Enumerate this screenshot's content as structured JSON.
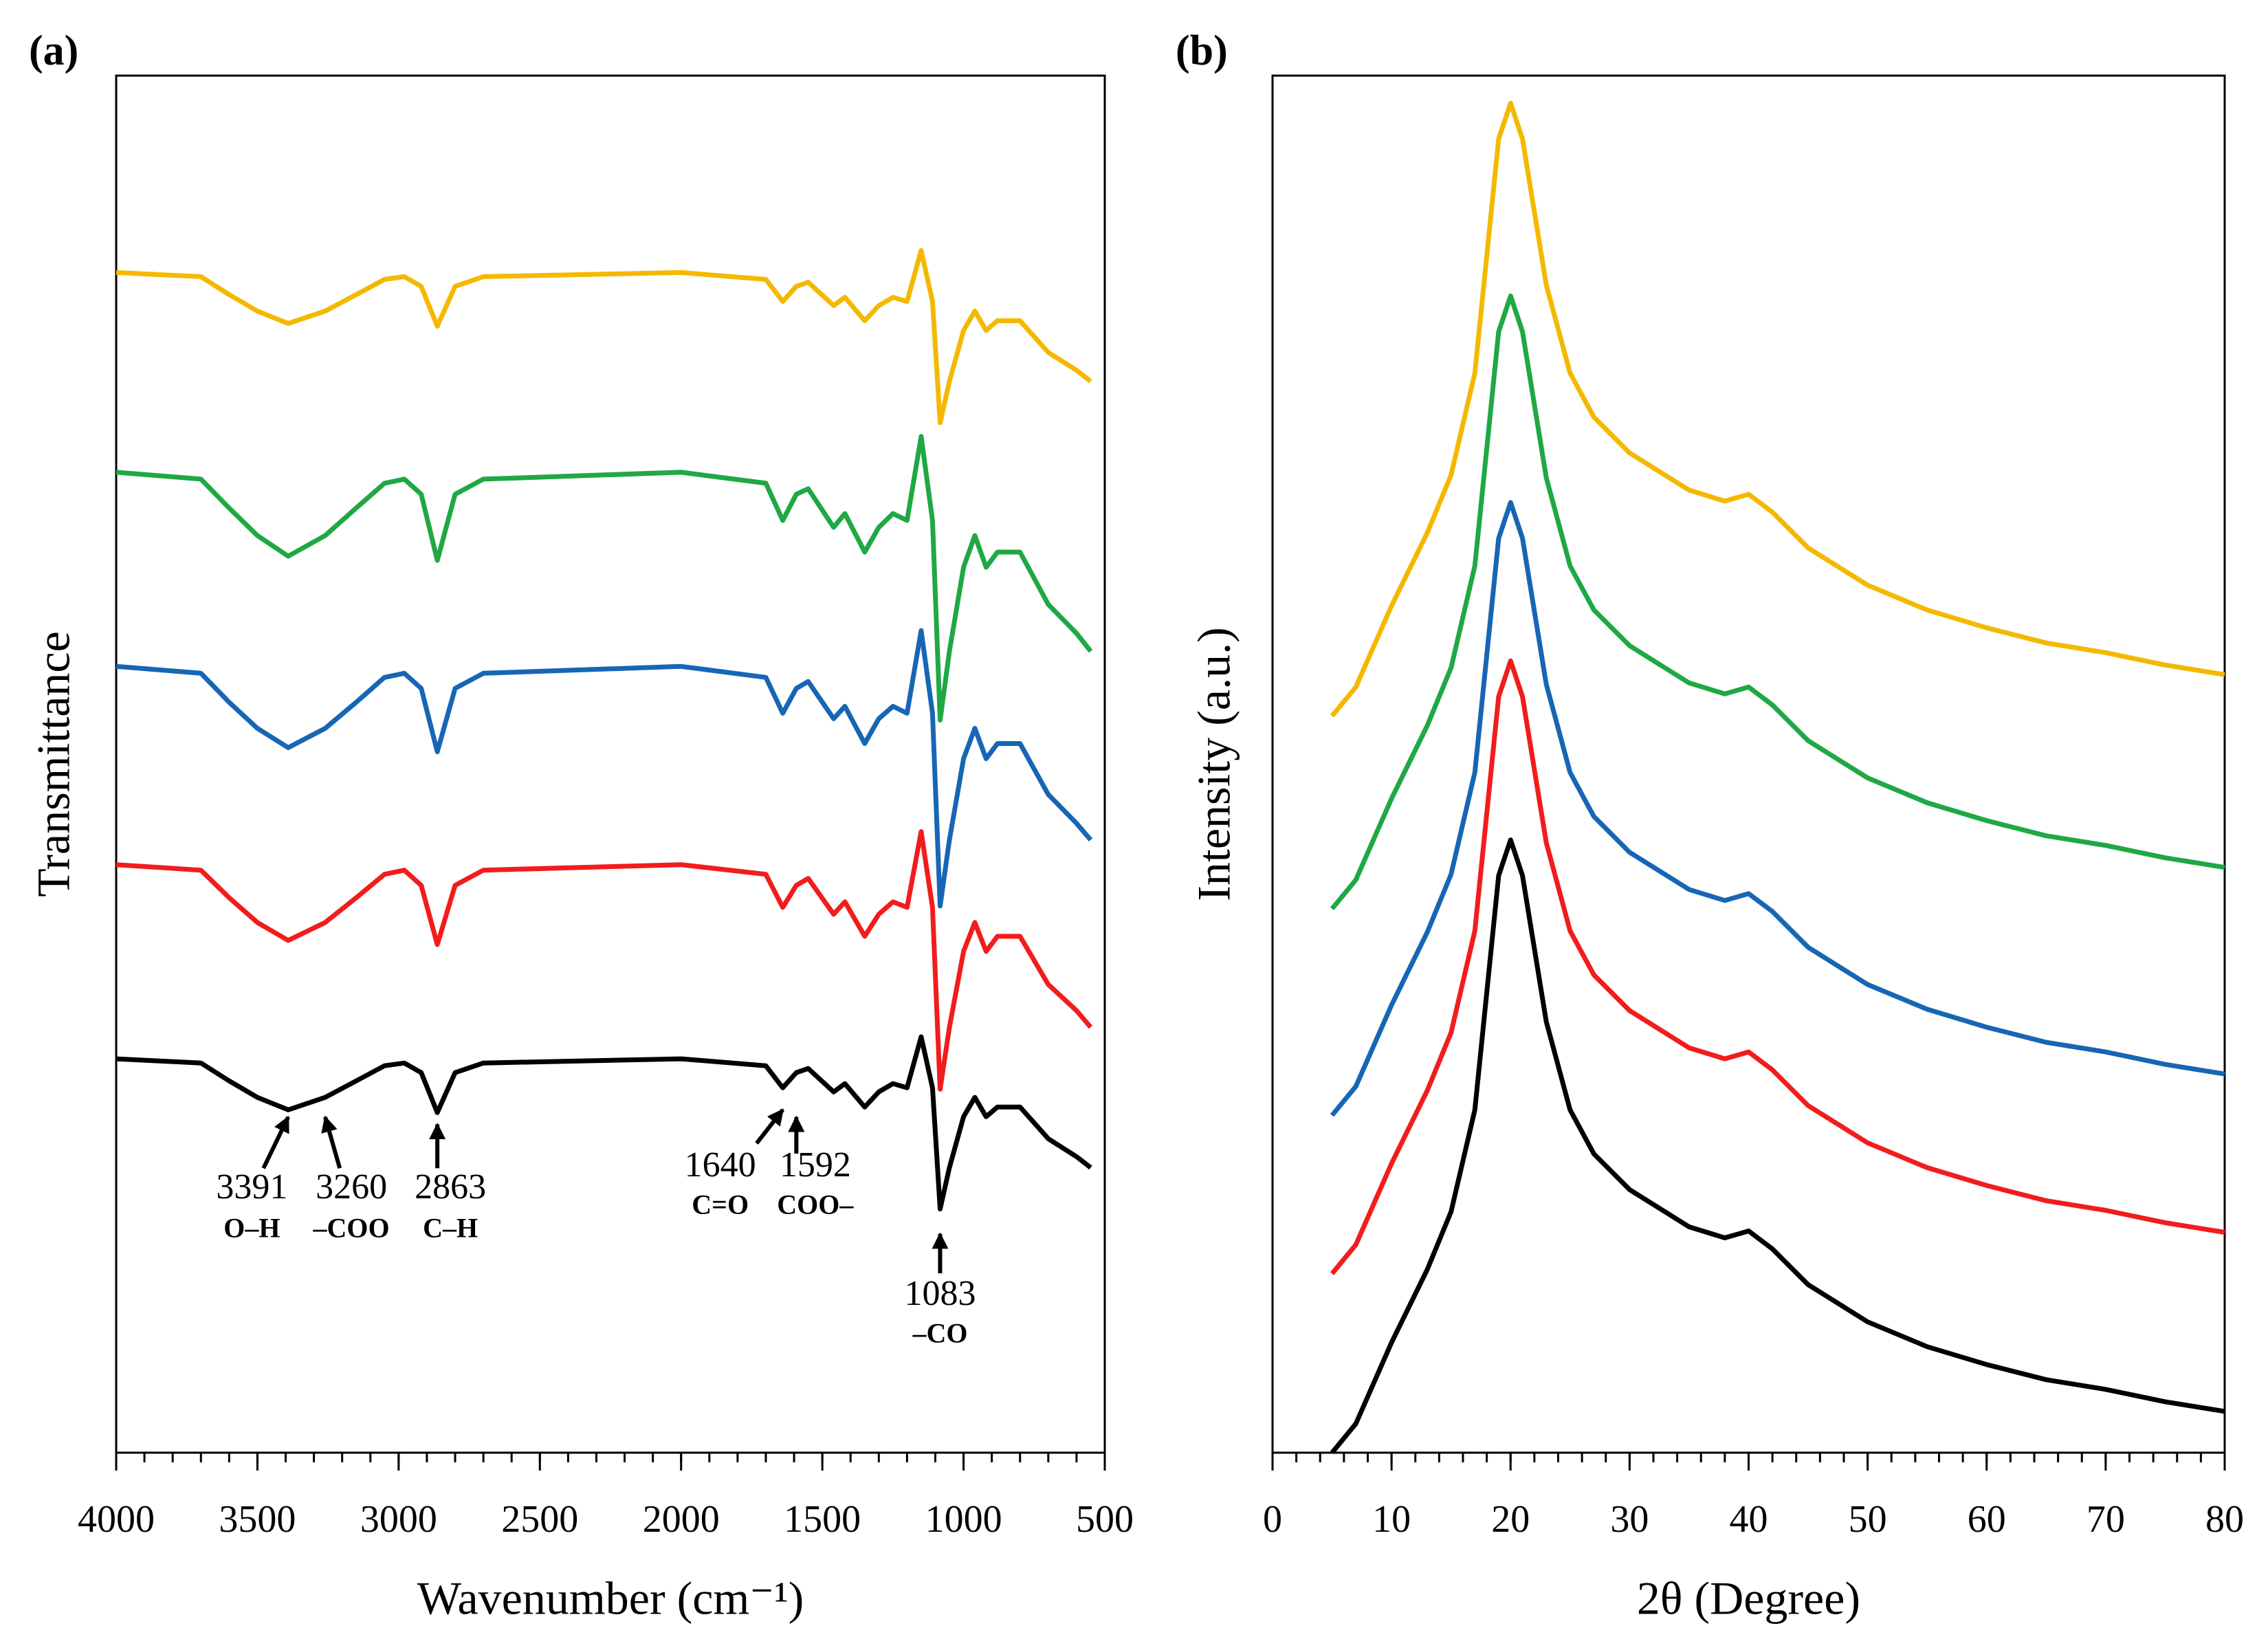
{
  "chart_data": [
    {
      "type": "line",
      "panel_label": "(a)",
      "x_label": "Wavenumber (cm⁻¹)",
      "y_label": "Transmittance",
      "xlim": [
        4000,
        500
      ],
      "ylim": [
        0,
        100
      ],
      "xticks": [
        4000,
        3500,
        3000,
        2500,
        2000,
        1500,
        1000,
        500
      ],
      "xminorticks": [
        4000,
        3900,
        3800,
        3700,
        3600,
        3500,
        3400,
        3300,
        3200,
        3100,
        3000,
        2900,
        2800,
        2700,
        2600,
        2500,
        2400,
        2300,
        2200,
        2100,
        2000,
        1900,
        1800,
        1700,
        1600,
        1500,
        1400,
        1300,
        1200,
        1100,
        1000,
        900,
        800,
        700,
        600,
        500
      ],
      "x": [
        4000,
        3700,
        3600,
        3500,
        3391,
        3260,
        3150,
        3050,
        2980,
        2920,
        2863,
        2800,
        2700,
        2000,
        1700,
        1640,
        1592,
        1550,
        1460,
        1420,
        1350,
        1300,
        1250,
        1200,
        1150,
        1110,
        1083,
        1050,
        1000,
        960,
        920,
        880,
        800,
        700,
        600,
        550
      ],
      "series": [
        {
          "color": "#f5b800",
          "values": [
            85.7,
            85.4,
            84.1,
            82.9,
            82.0,
            82.9,
            84.1,
            85.2,
            85.4,
            84.7,
            81.8,
            84.7,
            85.4,
            85.7,
            85.2,
            83.6,
            84.7,
            85.0,
            83.3,
            83.9,
            82.2,
            83.3,
            83.9,
            83.6,
            87.3,
            83.6,
            74.8,
            77.8,
            81.5,
            82.9,
            81.5,
            82.2,
            82.2,
            79.9,
            78.6,
            77.8
          ]
        },
        {
          "color": "#1fa843",
          "values": [
            71.2,
            70.7,
            68.6,
            66.6,
            65.1,
            66.6,
            68.6,
            70.4,
            70.7,
            69.6,
            64.8,
            69.6,
            70.7,
            71.2,
            70.4,
            67.7,
            69.6,
            70.0,
            67.2,
            68.2,
            65.4,
            67.2,
            68.2,
            67.7,
            73.8,
            67.7,
            53.2,
            58.2,
            64.3,
            66.6,
            64.3,
            65.4,
            65.4,
            61.6,
            59.5,
            58.2
          ]
        },
        {
          "color": "#1766b5",
          "values": [
            57.1,
            56.6,
            54.5,
            52.6,
            51.2,
            52.6,
            54.5,
            56.3,
            56.6,
            55.5,
            50.9,
            55.5,
            56.6,
            57.1,
            56.3,
            53.7,
            55.5,
            56.0,
            53.3,
            54.2,
            51.5,
            53.3,
            54.2,
            53.7,
            59.7,
            53.7,
            39.7,
            44.5,
            50.4,
            52.6,
            50.4,
            51.5,
            51.5,
            47.8,
            45.7,
            44.5
          ]
        },
        {
          "color": "#f21c1c",
          "values": [
            42.7,
            42.3,
            40.3,
            38.5,
            37.2,
            38.5,
            40.3,
            42.0,
            42.3,
            41.2,
            36.9,
            41.2,
            42.3,
            42.7,
            42.0,
            39.6,
            41.2,
            41.7,
            39.1,
            40.0,
            37.5,
            39.1,
            40.0,
            39.6,
            45.1,
            39.6,
            26.4,
            30.9,
            36.4,
            38.5,
            36.4,
            37.5,
            37.5,
            34.0,
            32.1,
            30.9
          ]
        },
        {
          "color": "#000000",
          "values": [
            28.6,
            28.3,
            27.0,
            25.8,
            24.9,
            25.8,
            27.0,
            28.1,
            28.3,
            27.6,
            24.7,
            27.6,
            28.3,
            28.6,
            28.1,
            26.5,
            27.6,
            27.9,
            26.2,
            26.8,
            25.1,
            26.2,
            26.8,
            26.5,
            30.2,
            26.5,
            17.7,
            20.7,
            24.4,
            25.8,
            24.4,
            25.1,
            25.1,
            22.8,
            21.5,
            20.7
          ]
        }
      ],
      "annotations": [
        {
          "x": 3391,
          "note": "O–H"
        },
        {
          "x": 3260,
          "note": "–COO"
        },
        {
          "x": 2863,
          "note": "C–H"
        },
        {
          "x": 1640,
          "note": "C=O"
        },
        {
          "x": 1592,
          "note": "COO–"
        },
        {
          "x": 1083,
          "note": "–CO"
        }
      ]
    },
    {
      "type": "line",
      "panel_label": "(b)",
      "x_label": "2θ (Degree)",
      "y_label": "Intensity (a.u.)",
      "xlim": [
        0,
        80
      ],
      "ylim": [
        0,
        100
      ],
      "xticks": [
        0,
        10,
        20,
        30,
        40,
        50,
        60,
        70,
        80
      ],
      "xminorticks": [
        0,
        2,
        4,
        6,
        8,
        10,
        12,
        14,
        16,
        18,
        20,
        22,
        24,
        26,
        28,
        30,
        32,
        34,
        36,
        38,
        40,
        42,
        44,
        46,
        48,
        50,
        52,
        54,
        56,
        58,
        60,
        62,
        64,
        66,
        68,
        70,
        72,
        74,
        76,
        78,
        80
      ],
      "x": [
        5,
        7,
        10,
        13,
        15,
        17,
        18,
        19,
        20,
        21,
        22,
        23,
        25,
        27,
        30,
        35,
        38,
        40,
        42,
        45,
        50,
        55,
        60,
        65,
        70,
        75,
        80
      ],
      "series": [
        {
          "color": "#f5b800",
          "values": [
            53.5,
            55.6,
            61.5,
            66.8,
            71,
            78.4,
            86.9,
            95.4,
            98,
            95.4,
            90.1,
            84.8,
            78.4,
            75.2,
            72.6,
            69.9,
            69.1,
            69.6,
            68.3,
            65.7,
            63,
            61.2,
            59.9,
            58.8,
            58.1,
            57.2,
            56.5
          ]
        },
        {
          "color": "#1fa843",
          "values": [
            39.5,
            41.6,
            47.5,
            52.8,
            57,
            64.4,
            72.9,
            81.4,
            84,
            81.4,
            76.1,
            70.8,
            64.4,
            61.2,
            58.6,
            55.9,
            55.1,
            55.6,
            54.3,
            51.7,
            49,
            47.2,
            45.9,
            44.8,
            44.1,
            43.2,
            42.5
          ]
        },
        {
          "color": "#1766b5",
          "values": [
            24.5,
            26.6,
            32.5,
            37.8,
            42,
            49.4,
            57.9,
            66.4,
            69,
            66.4,
            61.1,
            55.8,
            49.4,
            46.2,
            43.6,
            40.9,
            40.1,
            40.6,
            39.3,
            36.7,
            34,
            32.2,
            30.9,
            29.8,
            29.1,
            28.2,
            27.5
          ]
        },
        {
          "color": "#f21c1c",
          "values": [
            13,
            15.1,
            21,
            26.3,
            30.5,
            37.9,
            46.4,
            54.9,
            57.5,
            54.9,
            49.6,
            44.3,
            37.9,
            34.7,
            32.1,
            29.4,
            28.6,
            29.1,
            27.8,
            25.2,
            22.5,
            20.7,
            19.4,
            18.3,
            17.6,
            16.7,
            16
          ]
        },
        {
          "color": "#000000",
          "values": [
            0,
            2.1,
            8.0,
            13.3,
            17.5,
            24.9,
            33.4,
            41.9,
            44.5,
            41.9,
            36.6,
            31.3,
            24.9,
            21.7,
            19.1,
            16.4,
            15.6,
            16.1,
            14.8,
            12.2,
            9.5,
            7.7,
            6.4,
            5.3,
            4.6,
            3.7,
            3.0
          ]
        }
      ]
    }
  ]
}
